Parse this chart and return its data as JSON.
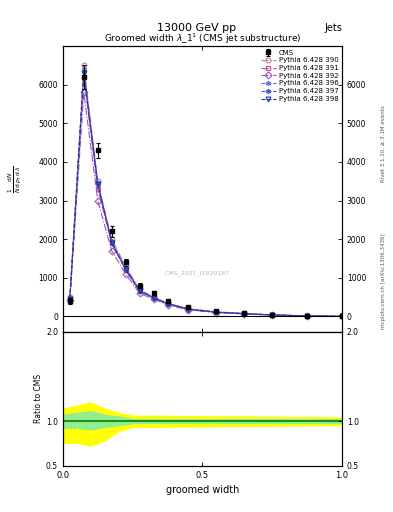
{
  "title": "13000 GeV pp",
  "title_right": "Jets",
  "plot_title": "Groomed width $\\lambda\\_1^1$ (CMS jet substructure)",
  "xlabel": "groomed width",
  "ylabel_ratio": "Ratio to CMS",
  "right_label_top": "Rivet 3.1.10, ≥ 3.1M events",
  "right_label_bottom": "mcplots.cern.ch [arXiv:1306.3436]",
  "watermark": "CMS_2021_I1920187",
  "cms_x": [
    0.025,
    0.075,
    0.125,
    0.175,
    0.225,
    0.275,
    0.325,
    0.375,
    0.45,
    0.55,
    0.65,
    0.75,
    0.875,
    1.0
  ],
  "cms_y": [
    400,
    6200,
    4300,
    2200,
    1400,
    800,
    600,
    400,
    250,
    150,
    100,
    50,
    20,
    5
  ],
  "cms_yerr": [
    80,
    300,
    200,
    150,
    100,
    60,
    50,
    35,
    25,
    15,
    10,
    8,
    5,
    2
  ],
  "py390_x": [
    0.025,
    0.075,
    0.125,
    0.175,
    0.225,
    0.275,
    0.325,
    0.375,
    0.45,
    0.55,
    0.65,
    0.75,
    0.875,
    1.0
  ],
  "py390_y": [
    500,
    6500,
    3500,
    2000,
    1300,
    700,
    500,
    350,
    200,
    120,
    80,
    40,
    15,
    4
  ],
  "py391_x": [
    0.025,
    0.075,
    0.125,
    0.175,
    0.225,
    0.275,
    0.325,
    0.375,
    0.45,
    0.55,
    0.65,
    0.75,
    0.875,
    1.0
  ],
  "py391_y": [
    450,
    6200,
    3300,
    1900,
    1200,
    650,
    480,
    320,
    180,
    110,
    70,
    38,
    14,
    3
  ],
  "py392_x": [
    0.025,
    0.075,
    0.125,
    0.175,
    0.225,
    0.275,
    0.325,
    0.375,
    0.45,
    0.55,
    0.65,
    0.75,
    0.875,
    1.0
  ],
  "py392_y": [
    420,
    5800,
    3000,
    1700,
    1100,
    600,
    450,
    300,
    165,
    100,
    65,
    35,
    13,
    3
  ],
  "py396_x": [
    0.025,
    0.075,
    0.125,
    0.175,
    0.225,
    0.275,
    0.325,
    0.375,
    0.45,
    0.55,
    0.65,
    0.75,
    0.875,
    1.0
  ],
  "py396_y": [
    480,
    6400,
    3400,
    1950,
    1250,
    680,
    490,
    340,
    195,
    115,
    75,
    42,
    16,
    4
  ],
  "py397_x": [
    0.025,
    0.075,
    0.125,
    0.175,
    0.225,
    0.275,
    0.325,
    0.375,
    0.45,
    0.55,
    0.65,
    0.75,
    0.875,
    1.0
  ],
  "py397_y": [
    470,
    6350,
    3450,
    1920,
    1230,
    670,
    485,
    335,
    192,
    112,
    73,
    41,
    16,
    4
  ],
  "py398_x": [
    0.025,
    0.075,
    0.125,
    0.175,
    0.225,
    0.275,
    0.325,
    0.375,
    0.45,
    0.55,
    0.65,
    0.75,
    0.875,
    1.0
  ],
  "py398_y": [
    460,
    6300,
    3420,
    1900,
    1210,
    660,
    480,
    330,
    190,
    110,
    72,
    40,
    15,
    4
  ],
  "xlim": [
    0,
    1.0
  ],
  "ylim_main": [
    -400,
    7000
  ],
  "ylim_ratio": [
    0.5,
    2.0
  ],
  "yticks_main": [
    0,
    1000,
    2000,
    3000,
    4000,
    5000,
    6000
  ],
  "yticks_ratio": [
    0.5,
    1.0,
    2.0
  ],
  "color_cms": "#000000",
  "color_390": "#cc77aa",
  "color_391": "#cc4488",
  "color_392": "#9955bb",
  "color_396": "#5577cc",
  "color_397": "#4455bb",
  "color_398": "#223399",
  "bg_green": "#90ee90",
  "bg_yellow": "#ffff00",
  "ratio_x_bins": [
    0.0,
    0.05,
    0.1,
    0.15,
    0.2,
    0.25,
    1.0
  ],
  "ratio_ylo_yellow": [
    0.75,
    0.75,
    0.72,
    0.78,
    0.88,
    0.93,
    0.95
  ],
  "ratio_yhi_yellow": [
    1.15,
    1.18,
    1.22,
    1.15,
    1.1,
    1.07,
    1.05
  ],
  "ratio_ylo_green": [
    0.92,
    0.92,
    0.9,
    0.93,
    0.95,
    0.97,
    0.97
  ],
  "ratio_yhi_green": [
    1.08,
    1.1,
    1.12,
    1.08,
    1.06,
    1.03,
    1.03
  ]
}
